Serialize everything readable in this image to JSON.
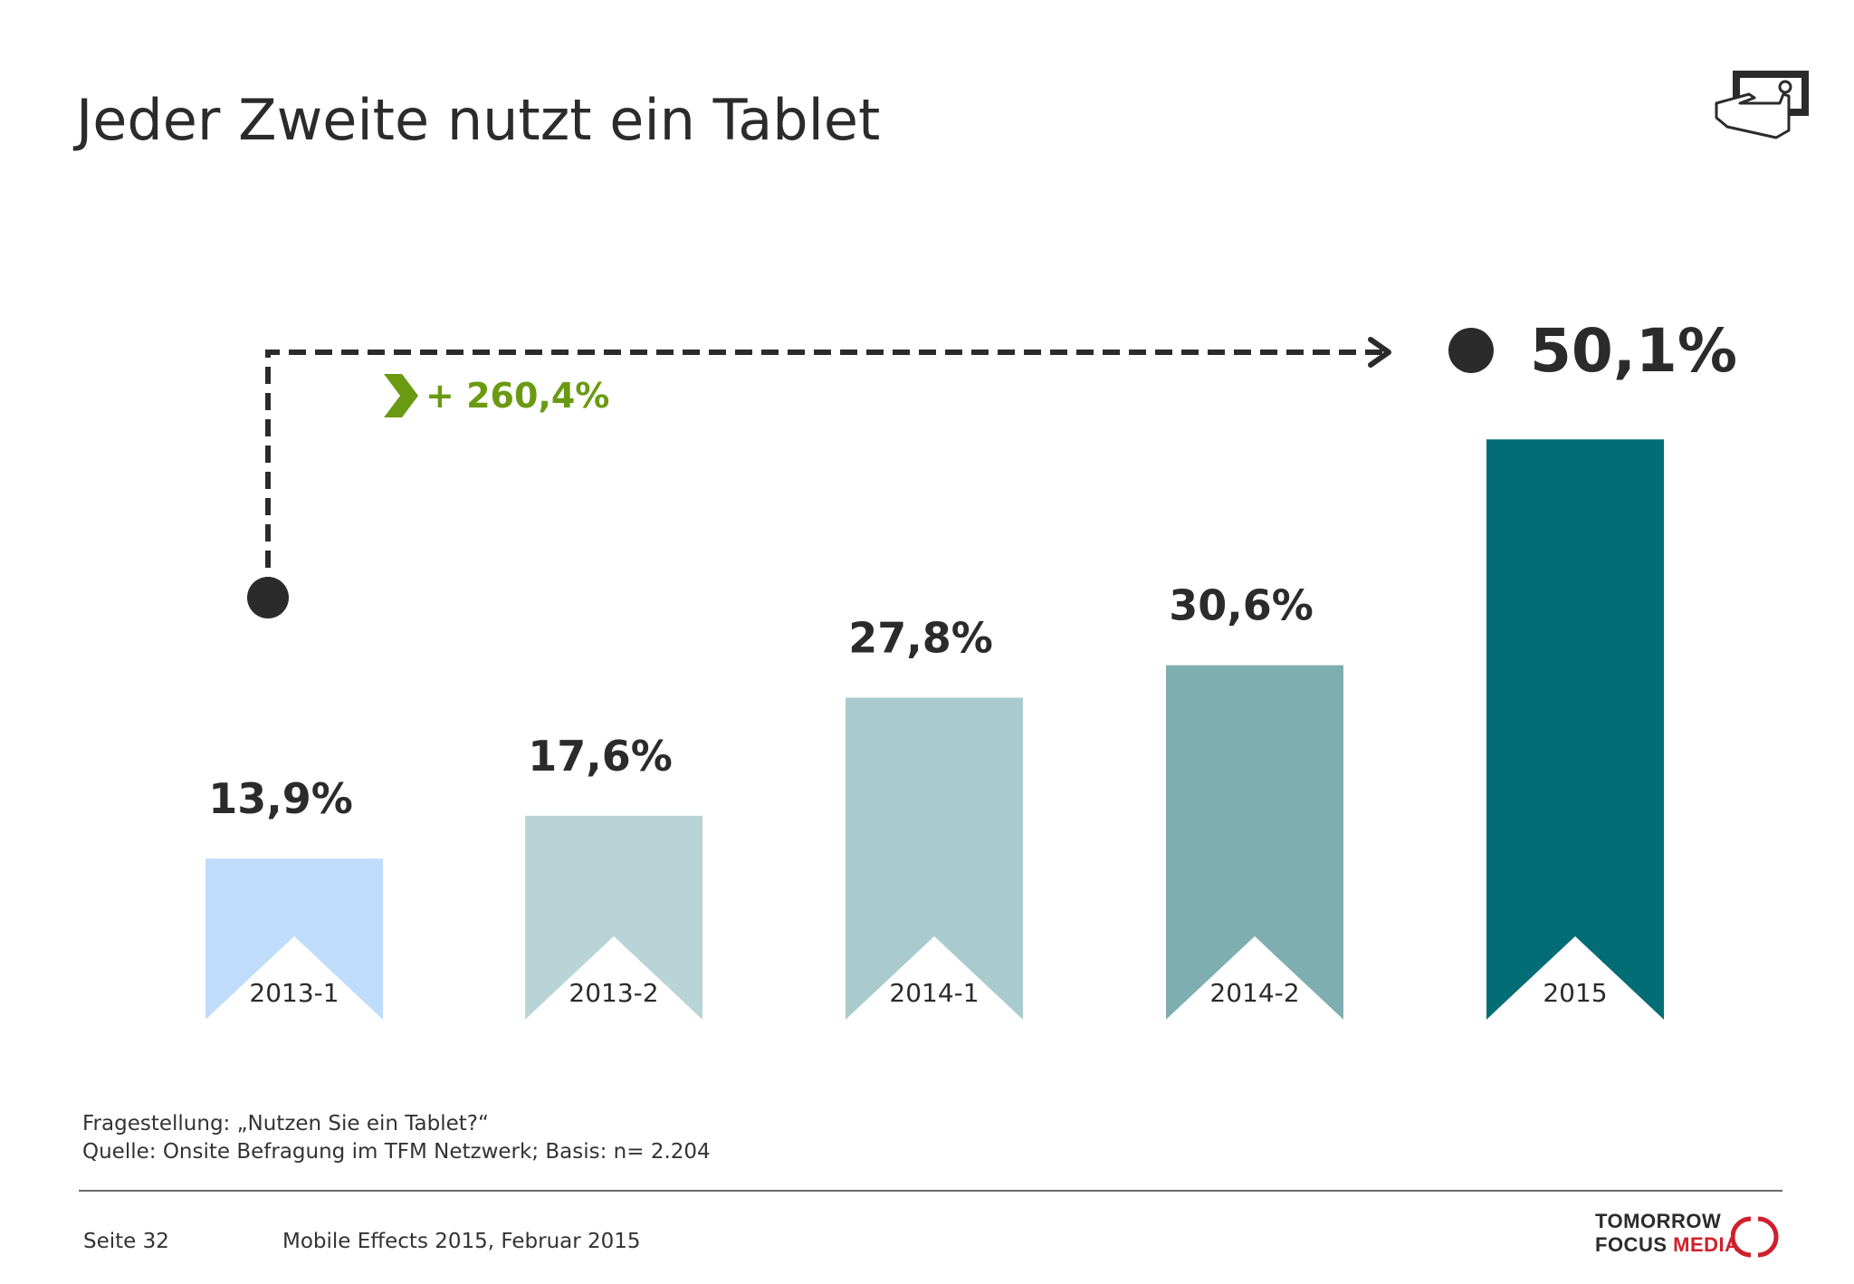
{
  "title": "Jeder Zweite nutzt ein Tablet",
  "growth_label": "+ 260,4%",
  "highlight_value": "50,1%",
  "footnote": {
    "question": "Fragestellung: „Nutzen Sie ein Tablet?“",
    "source": "Quelle: Onsite Befragung im TFM Netzwerk; Basis: n= 2.204"
  },
  "footer": {
    "page": "Seite 32",
    "report": "Mobile Effects 2015, Februar 2015"
  },
  "logo": {
    "line1": "TOMORROW",
    "line2a": "FOCUS",
    "line2b": "MEDIA"
  },
  "icons": {
    "top_right": "tablet-touch-icon",
    "growth": "chevron-right-icon"
  },
  "colors": {
    "bars": [
      "#bfdcfb",
      "#b8d4d6",
      "#a9cbce",
      "#7faeb1",
      "#036d76"
    ],
    "growth": "#6a9a12",
    "text": "#2b2b2b"
  },
  "chart_data": {
    "type": "bar",
    "categories": [
      "2013-1",
      "2013-2",
      "2014-1",
      "2014-2",
      "2015"
    ],
    "values": [
      13.9,
      17.6,
      27.8,
      30.6,
      50.1
    ],
    "labels": [
      "13,9%",
      "17,6%",
      "27,8%",
      "30,6%",
      ""
    ],
    "title": "Jeder Zweite nutzt ein Tablet",
    "xlabel": "",
    "ylabel": "",
    "grid": false,
    "legend": "none"
  }
}
